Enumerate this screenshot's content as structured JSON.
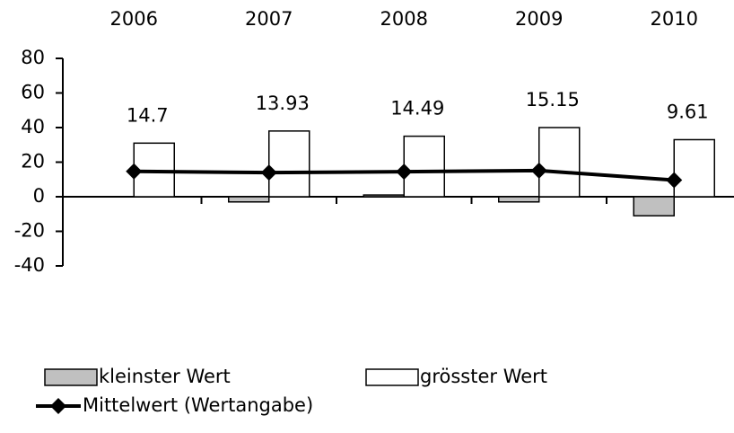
{
  "chart_data": {
    "type": "bar",
    "categories": [
      "2006",
      "2007",
      "2008",
      "2009",
      "2010"
    ],
    "series": [
      {
        "name": "kleinster Wert",
        "color": "#c0c0c0",
        "values": [
          0,
          -3,
          1,
          -3,
          -11
        ]
      },
      {
        "name": "grösster Wert",
        "color": "#ffffff",
        "values": [
          31,
          38,
          35,
          40,
          33
        ]
      },
      {
        "name": "Mittelwert (Wertangabe)",
        "type": "line",
        "color": "#000000",
        "values": [
          14.7,
          13.93,
          14.49,
          15.15,
          9.61
        ]
      }
    ],
    "ylim": [
      -40,
      80
    ],
    "yticks": [
      -40,
      -20,
      0,
      20,
      40,
      60,
      80
    ]
  }
}
